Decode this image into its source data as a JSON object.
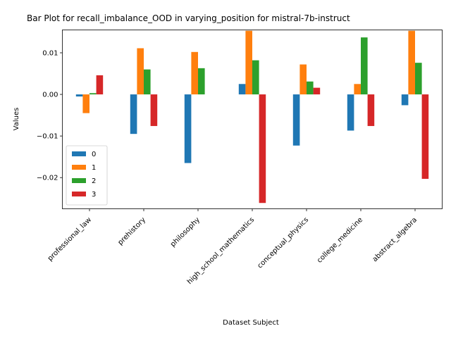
{
  "chart_data": {
    "type": "bar",
    "title": "Bar Plot for recall_imbalance_OOD in varying_position for mistral-7b-instruct",
    "xlabel": "Dataset Subject",
    "ylabel": "Values",
    "categories": [
      "professional_law",
      "prehistory",
      "philosophy",
      "high_school_mathematics",
      "conceptual_physics",
      "college_medicine",
      "abstract_algebra"
    ],
    "series": [
      {
        "name": "0",
        "color": "#1f77b4",
        "values": [
          -0.0005,
          -0.0095,
          -0.0165,
          0.0025,
          -0.0123,
          -0.0087,
          -0.0026
        ]
      },
      {
        "name": "1",
        "color": "#ff7f0e",
        "values": [
          -0.0045,
          0.0111,
          0.0102,
          0.0153,
          0.0072,
          0.0025,
          0.0153
        ]
      },
      {
        "name": "2",
        "color": "#2ca02c",
        "values": [
          0.0003,
          0.006,
          0.0063,
          0.0082,
          0.0031,
          0.0137,
          0.0076
        ]
      },
      {
        "name": "3",
        "color": "#d62728",
        "values": [
          0.0046,
          -0.0076,
          0.0,
          -0.0261,
          0.0016,
          -0.0076,
          -0.0203
        ]
      }
    ],
    "yticks": [
      -0.02,
      -0.01,
      0.0,
      0.01
    ],
    "ytick_labels": [
      "−0.02",
      "−0.01",
      "0.00",
      "0.01"
    ],
    "ylim": [
      -0.0275,
      0.0155
    ],
    "legend_position": "lower-left",
    "grid": false
  }
}
